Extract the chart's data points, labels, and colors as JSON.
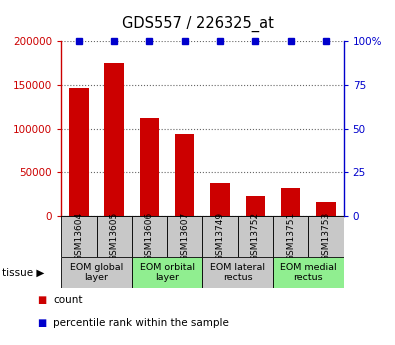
{
  "title": "GDS557 / 226325_at",
  "samples": [
    "GSM13604",
    "GSM13605",
    "GSM13606",
    "GSM13607",
    "GSM13749",
    "GSM13752",
    "GSM13751",
    "GSM13753"
  ],
  "counts": [
    147000,
    175000,
    112000,
    94000,
    37000,
    22000,
    32000,
    16000
  ],
  "percentiles": [
    100,
    100,
    100,
    100,
    100,
    100,
    100,
    100
  ],
  "ylim_left": [
    0,
    200000
  ],
  "ylim_right": [
    0,
    100
  ],
  "yticks_left": [
    0,
    50000,
    100000,
    150000,
    200000
  ],
  "yticks_right": [
    0,
    25,
    50,
    75,
    100
  ],
  "ytick_labels_left": [
    "0",
    "50000",
    "100000",
    "150000",
    "200000"
  ],
  "ytick_labels_right": [
    "0",
    "25",
    "50",
    "75",
    "100%"
  ],
  "bar_color": "#cc0000",
  "percentile_color": "#0000cc",
  "tissue_groups": [
    {
      "label": "EOM global\nlayer",
      "start": 0,
      "end": 2,
      "color": "#c8c8c8"
    },
    {
      "label": "EOM orbital\nlayer",
      "start": 2,
      "end": 4,
      "color": "#90ee90"
    },
    {
      "label": "EOM lateral\nrectus",
      "start": 4,
      "end": 6,
      "color": "#c8c8c8"
    },
    {
      "label": "EOM medial\nrectus",
      "start": 6,
      "end": 8,
      "color": "#90ee90"
    }
  ],
  "sample_box_color": "#c8c8c8",
  "legend_count_label": "count",
  "legend_percentile_label": "percentile rank within the sample",
  "tissue_label": "tissue",
  "bar_width": 0.55,
  "grid_color": "#888888",
  "dotted_grid_color": "#666666"
}
